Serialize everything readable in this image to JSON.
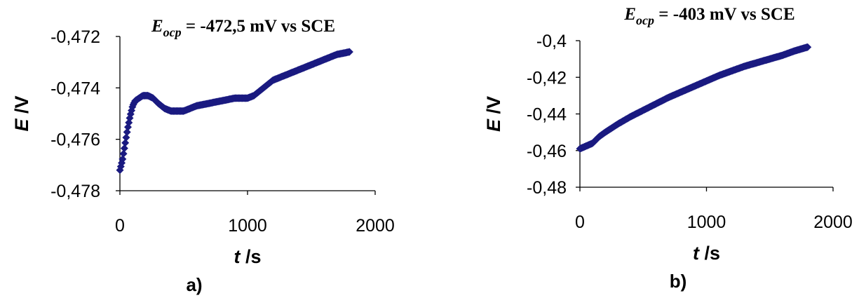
{
  "chart_data": [
    {
      "type": "scatter",
      "panel_label": "a)",
      "title_main": "E",
      "title_sub": "ocp",
      "title_rest": " = -472,5 mV vs SCE",
      "xlabel_var": "t",
      "xlabel_unit": " /s",
      "ylabel_var": "E",
      "ylabel_unit": " /V",
      "xlim": [
        0,
        2000
      ],
      "ylim": [
        -0.478,
        -0.472
      ],
      "xticks": [
        0,
        1000,
        2000
      ],
      "xtick_labels": [
        "0",
        "1000",
        "2000"
      ],
      "yticks": [
        -0.472,
        -0.474,
        -0.476,
        -0.478
      ],
      "ytick_labels": [
        "-0,472",
        "-0,474",
        "-0,476",
        "-0,478"
      ],
      "grid": false,
      "color": "#1a1a80",
      "series": [
        {
          "x": [
            0,
            20,
            40,
            60,
            80,
            100,
            120,
            150,
            180,
            220,
            260,
            300,
            350,
            400,
            450,
            500,
            550,
            600,
            700,
            800,
            900,
            1000,
            1050,
            1100,
            1150,
            1200,
            1300,
            1400,
            1500,
            1600,
            1700,
            1800
          ],
          "y": [
            -0.4772,
            -0.4768,
            -0.4762,
            -0.4756,
            -0.4751,
            -0.4747,
            -0.4745,
            -0.4744,
            -0.4743,
            -0.4743,
            -0.4744,
            -0.4746,
            -0.4748,
            -0.4749,
            -0.4749,
            -0.4749,
            -0.4748,
            -0.4747,
            -0.4746,
            -0.4745,
            -0.4744,
            -0.4744,
            -0.4743,
            -0.4741,
            -0.4739,
            -0.4737,
            -0.4735,
            -0.4733,
            -0.4731,
            -0.4729,
            -0.4727,
            -0.4726
          ]
        }
      ]
    },
    {
      "type": "scatter",
      "panel_label": "b)",
      "title_main": "E",
      "title_sub": "ocp",
      "title_rest": " = -403 mV vs SCE",
      "xlabel_var": "t",
      "xlabel_unit": " /s",
      "ylabel_var": "E",
      "ylabel_unit": " /V",
      "xlim": [
        0,
        2000
      ],
      "ylim": [
        -0.48,
        -0.4
      ],
      "xticks": [
        0,
        1000,
        2000
      ],
      "xtick_labels": [
        "0",
        "1000",
        "2000"
      ],
      "yticks": [
        -0.4,
        -0.42,
        -0.44,
        -0.46,
        -0.48
      ],
      "ytick_labels": [
        "-0,4",
        "-0,42",
        "-0,44",
        "-0,46",
        "-0,48"
      ],
      "grid": false,
      "color": "#1a1a80",
      "series": [
        {
          "x": [
            0,
            50,
            100,
            150,
            200,
            300,
            400,
            500,
            600,
            700,
            800,
            900,
            1000,
            1100,
            1200,
            1300,
            1400,
            1500,
            1600,
            1700,
            1800
          ],
          "y": [
            -0.459,
            -0.4575,
            -0.456,
            -0.4525,
            -0.45,
            -0.4455,
            -0.4415,
            -0.438,
            -0.4345,
            -0.431,
            -0.428,
            -0.425,
            -0.422,
            -0.419,
            -0.4165,
            -0.414,
            -0.412,
            -0.41,
            -0.408,
            -0.4055,
            -0.4035
          ]
        }
      ]
    }
  ]
}
